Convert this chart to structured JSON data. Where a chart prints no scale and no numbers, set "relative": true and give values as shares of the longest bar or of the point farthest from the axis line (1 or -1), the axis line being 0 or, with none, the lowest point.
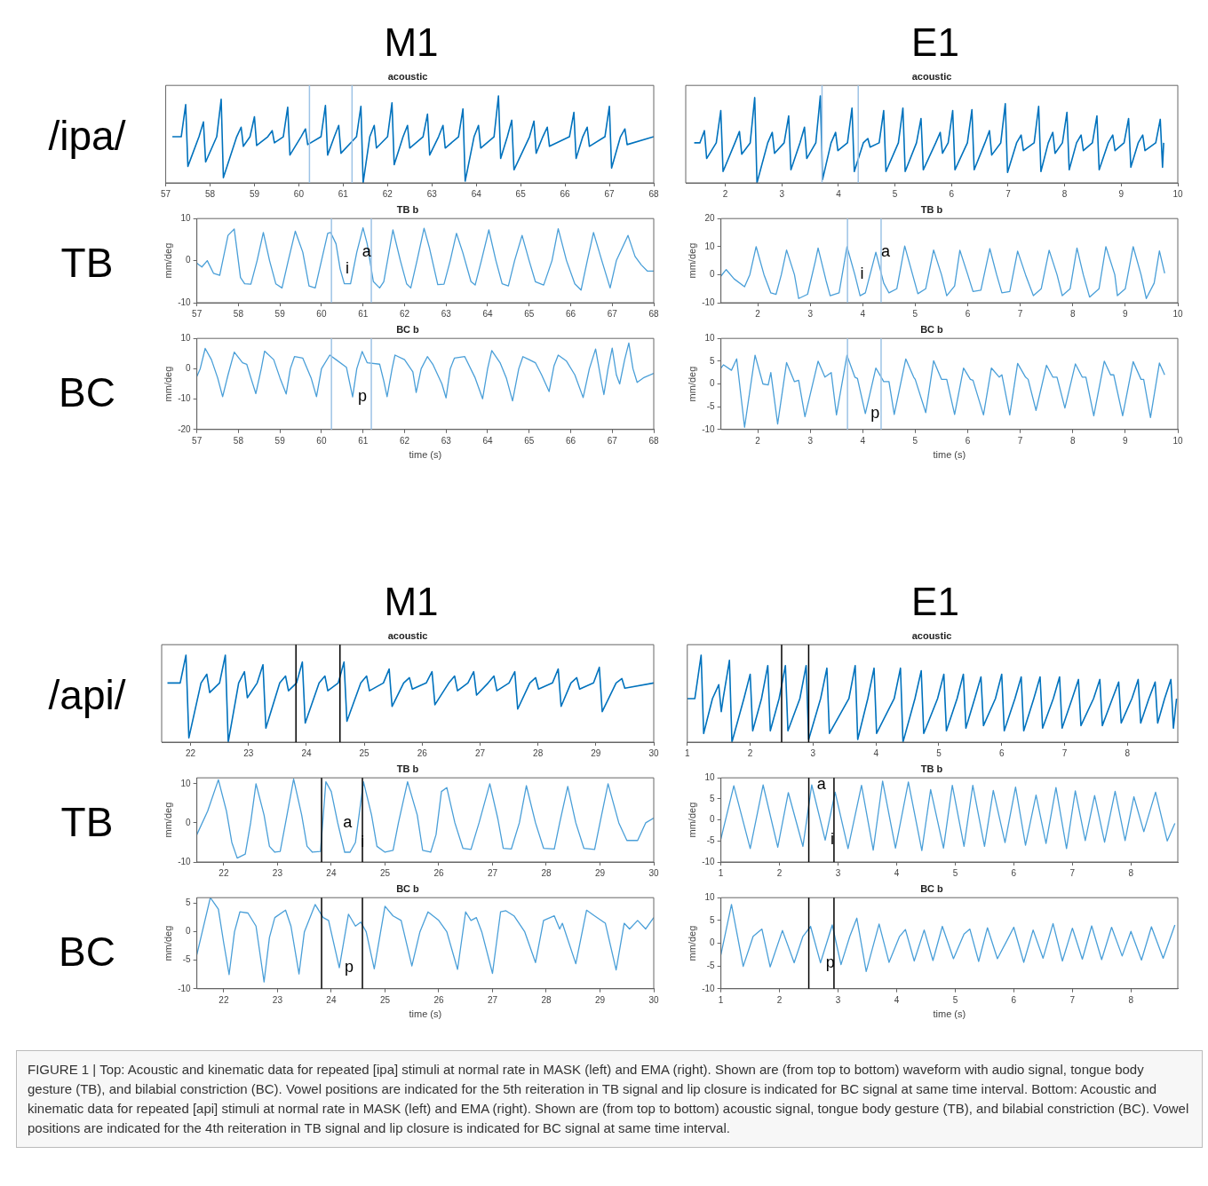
{
  "chart_data": [
    {
      "type": "line",
      "title": "M1",
      "subtitle": "acoustic",
      "relative": true,
      "color": "#0072bd",
      "xlim": [
        57,
        68
      ],
      "xticks": [
        57,
        58,
        59,
        60,
        61,
        62,
        63,
        64,
        65,
        66,
        67,
        68
      ],
      "annotations": [
        "/ipa/"
      ],
      "ref_lines": [
        {
          "axis": "x",
          "value": 60.24,
          "color": "#9dc3e6"
        },
        {
          "axis": "x",
          "value": 61.2,
          "color": "#9dc3e6"
        }
      ],
      "x": [
        57.15,
        57.35,
        57.45,
        57.5,
        57.75,
        57.85,
        57.9,
        58.15,
        58.25,
        58.3,
        58.6,
        58.7,
        58.75,
        58.9,
        59.0,
        59.05,
        59.3,
        59.4,
        59.45,
        59.65,
        59.75,
        59.8,
        60.05,
        60.15,
        60.2,
        60.5,
        60.6,
        60.65,
        60.8,
        60.9,
        60.95,
        61.3,
        61.4,
        61.45,
        61.6,
        61.7,
        61.75,
        62.0,
        62.1,
        62.15,
        62.35,
        62.45,
        62.5,
        62.8,
        62.9,
        62.95,
        63.15,
        63.25,
        63.3,
        63.6,
        63.7,
        63.75,
        63.95,
        64.05,
        64.1,
        64.4,
        64.5,
        64.55,
        64.7,
        64.8,
        64.85,
        65.2,
        65.3,
        65.35,
        65.5,
        65.6,
        65.65,
        66.1,
        66.2,
        66.25,
        66.4,
        66.5,
        66.55,
        66.9,
        67.0,
        67.05,
        67.25,
        67.35,
        67.4,
        68
      ],
      "values": [
        0.53,
        0.53,
        0.9,
        0.19,
        0.53,
        0.7,
        0.24,
        0.53,
        0.96,
        0.06,
        0.53,
        0.64,
        0.42,
        0.53,
        0.76,
        0.43,
        0.53,
        0.6,
        0.46,
        0.53,
        0.87,
        0.32,
        0.53,
        0.62,
        0.44,
        0.53,
        0.89,
        0.32,
        0.53,
        0.66,
        0.34,
        0.53,
        0.88,
        0,
        0.53,
        0.66,
        0.4,
        0.53,
        0.92,
        0.21,
        0.53,
        0.66,
        0.4,
        0.53,
        0.79,
        0.32,
        0.53,
        0.66,
        0.4,
        0.53,
        0.85,
        0.02,
        0.53,
        0.66,
        0.4,
        0.53,
        1,
        0.28,
        0.53,
        0.72,
        0.15,
        0.53,
        0.71,
        0.34,
        0.53,
        0.64,
        0.42,
        0.53,
        0.81,
        0.28,
        0.53,
        0.64,
        0.42,
        0.53,
        0.88,
        0.17,
        0.53,
        0.62,
        0.44,
        0.53
      ]
    },
    {
      "type": "line",
      "title": "TB b",
      "ylabel": "mm/deg",
      "color": "#4a9fd8",
      "xlim": [
        57,
        68
      ],
      "xticks": [
        57,
        58,
        59,
        60,
        61,
        62,
        63,
        64,
        65,
        66,
        67,
        68
      ],
      "ylim": [
        -10,
        10
      ],
      "yticks": [
        -10,
        0,
        10
      ],
      "annotations": [
        "TB",
        {
          "text": "a",
          "x": 60.85,
          "y": 2
        },
        {
          "text": "i",
          "x": 60.45,
          "y": -2
        }
      ],
      "ref_lines": [
        {
          "axis": "x",
          "value": 60.24,
          "color": "#9dc3e6"
        },
        {
          "axis": "x",
          "value": 61.2,
          "color": "#9dc3e6"
        }
      ],
      "x": [
        57,
        57.12,
        57.25,
        57.4,
        57.55,
        57.75,
        57.9,
        58.05,
        58.15,
        58.3,
        58.45,
        58.6,
        58.75,
        58.9,
        59.05,
        59.2,
        59.37,
        59.55,
        59.7,
        59.85,
        60,
        60.15,
        60.22,
        60.35,
        60.45,
        60.55,
        60.7,
        60.85,
        61,
        61.1,
        61.25,
        61.4,
        61.5,
        61.72,
        61.9,
        62.05,
        62.15,
        62.3,
        62.47,
        62.6,
        62.8,
        62.95,
        63.1,
        63.25,
        63.4,
        63.6,
        63.7,
        63.85,
        64.03,
        64.2,
        64.35,
        64.5,
        64.65,
        64.83,
        65,
        65.15,
        65.35,
        65.55,
        65.7,
        65.9,
        66.1,
        66.25,
        66.4,
        66.55,
        66.75,
        66.95,
        67.1,
        67.38,
        67.55,
        67.7,
        67.85,
        68
      ],
      "values": [
        -0.6,
        -1.5,
        0,
        -3,
        -3.5,
        6,
        7.5,
        -4,
        -5.5,
        -5.6,
        0,
        6.7,
        0,
        -5.5,
        -6.5,
        0,
        7,
        2,
        -6,
        -6.5,
        0,
        6.5,
        6.7,
        4,
        -2,
        -5.5,
        -5.5,
        2,
        7.8,
        4,
        -5,
        -6.5,
        -5,
        7.3,
        0,
        -5.5,
        -6.5,
        0,
        7.7,
        3,
        -5.7,
        -5.6,
        0,
        6.5,
        2,
        -5,
        -5.8,
        0,
        7.3,
        0,
        -5.5,
        -6,
        0,
        6,
        0,
        -5,
        -5.8,
        0,
        7.6,
        0,
        -5.5,
        -7,
        0,
        6.7,
        0,
        -6.5,
        0,
        6,
        1,
        -1,
        -2.5,
        -2.5
      ]
    },
    {
      "type": "line",
      "title": "BC b",
      "ylabel": "mm/deg",
      "xlabel": "time (s)",
      "color": "#4a9fd8",
      "xlim": [
        57,
        68
      ],
      "xticks": [
        57,
        58,
        59,
        60,
        61,
        62,
        63,
        64,
        65,
        66,
        67,
        68
      ],
      "ylim": [
        -20,
        10
      ],
      "yticks": [
        -20,
        -10,
        0,
        10
      ],
      "annotations": [
        "BC",
        {
          "text": "p",
          "x": 60.75,
          "y": -9.3
        }
      ],
      "ref_lines": [
        {
          "axis": "x",
          "value": 60.24,
          "color": "#9dc3e6"
        },
        {
          "axis": "x",
          "value": 61.2,
          "color": "#9dc3e6"
        }
      ],
      "x": [
        57,
        57.08,
        57.2,
        57.35,
        57.5,
        57.62,
        57.75,
        57.9,
        58.1,
        58.2,
        58.3,
        58.42,
        58.55,
        58.63,
        58.85,
        59,
        59.15,
        59.25,
        59.35,
        59.55,
        59.75,
        59.88,
        60,
        60.2,
        60.35,
        60.6,
        60.75,
        60.85,
        60.98,
        61.1,
        61.4,
        61.5,
        61.58,
        61.7,
        61.77,
        62,
        62.2,
        62.28,
        62.4,
        62.55,
        62.68,
        62.9,
        63,
        63.1,
        63.2,
        63.45,
        63.7,
        63.88,
        64,
        64.1,
        64.3,
        64.45,
        64.6,
        64.75,
        64.85,
        65,
        65.15,
        65.3,
        65.48,
        65.6,
        65.7,
        65.9,
        66.1,
        66.3,
        66.45,
        66.6,
        66.75,
        66.8,
        66.9,
        67,
        67.1,
        67.18,
        67.3,
        67.4,
        67.5,
        67.6,
        67.75,
        68
      ],
      "values": [
        -2.5,
        0,
        6.7,
        3,
        -3,
        -9.2,
        -2,
        5.5,
        2,
        1.5,
        -3,
        -8.2,
        0,
        5.8,
        3,
        -3,
        -8.3,
        0,
        4,
        3.5,
        -3,
        -9.2,
        0,
        4.5,
        3,
        0.5,
        -9.3,
        0,
        5.7,
        2,
        1.5,
        -4,
        -9.2,
        0,
        4.5,
        3,
        -1,
        -7.8,
        0,
        4,
        1.5,
        -5,
        -9.6,
        0,
        3.5,
        4,
        -3,
        -9.9,
        0,
        6,
        2,
        -3,
        -10.6,
        0,
        4,
        3,
        2,
        -2,
        -7.5,
        1,
        4.5,
        2.5,
        -2,
        -9.5,
        0,
        6.5,
        -5,
        -8.5,
        0,
        6.8,
        -2,
        -5,
        3,
        8.5,
        0,
        -4.5,
        -3,
        -1.5
      ]
    },
    {
      "type": "line",
      "title": "E1",
      "subtitle": "acoustic",
      "relative": true,
      "color": "#0072bd",
      "xlim": [
        1.3,
        10
      ],
      "xticks": [
        2,
        3,
        4,
        5,
        6,
        7,
        8,
        9,
        10
      ],
      "ref_lines": [
        {
          "axis": "x",
          "value": 3.71,
          "color": "#9dc3e6"
        },
        {
          "axis": "x",
          "value": 4.35,
          "color": "#9dc3e6"
        }
      ],
      "x": [
        1.45,
        1.55,
        1.63,
        1.67,
        1.84,
        1.92,
        1.96,
        2.17,
        2.25,
        2.29,
        2.44,
        2.52,
        2.56,
        2.75,
        2.83,
        2.87,
        3.04,
        3.12,
        3.16,
        3.32,
        3.4,
        3.44,
        3.6,
        3.68,
        3.72,
        3.87,
        3.95,
        3.99,
        4.16,
        4.24,
        4.28,
        4.44,
        4.52,
        4.56,
        4.72,
        4.8,
        4.84,
        5.06,
        5.14,
        5.18,
        5.38,
        5.46,
        5.5,
        5.72,
        5.8,
        5.84,
        5.94,
        6.02,
        6.06,
        6.28,
        6.36,
        6.4,
        6.59,
        6.67,
        6.71,
        6.87,
        6.95,
        6.99,
        7.15,
        7.23,
        7.27,
        7.46,
        7.54,
        7.58,
        7.71,
        7.79,
        7.83,
        7.96,
        8.04,
        8.08,
        8.21,
        8.29,
        8.33,
        8.49,
        8.57,
        8.61,
        8.77,
        8.85,
        8.89,
        9.05,
        9.13,
        9.17,
        9.3,
        9.38,
        9.42,
        9.61,
        9.69,
        9.73,
        9.75
      ],
      "values": [
        0.46,
        0.46,
        0.6,
        0.28,
        0.46,
        0.83,
        0.13,
        0.46,
        0.59,
        0.33,
        0.46,
        0.98,
        0,
        0.46,
        0.58,
        0.34,
        0.46,
        0.77,
        0.15,
        0.46,
        0.64,
        0.28,
        0.46,
        1,
        0.04,
        0.46,
        0.58,
        0.37,
        0.46,
        0.86,
        0.13,
        0.46,
        0.51,
        0.41,
        0.46,
        0.83,
        0.13,
        0.46,
        0.86,
        0.13,
        0.46,
        0.74,
        0.15,
        0.46,
        0.58,
        0.34,
        0.46,
        0.83,
        0.15,
        0.46,
        0.84,
        0.15,
        0.46,
        0.6,
        0.32,
        0.46,
        0.91,
        0.12,
        0.46,
        0.55,
        0.37,
        0.46,
        0.88,
        0.13,
        0.46,
        0.58,
        0.34,
        0.46,
        0.81,
        0.15,
        0.46,
        0.55,
        0.37,
        0.46,
        0.77,
        0.15,
        0.46,
        0.55,
        0.37,
        0.46,
        0.74,
        0.18,
        0.46,
        0.55,
        0.37,
        0.46,
        0.73,
        0.18,
        0.46
      ]
    },
    {
      "type": "line",
      "title": "TB b",
      "ylabel": "mm/deg",
      "color": "#4a9fd8",
      "xlim": [
        1.3,
        10
      ],
      "xticks": [
        2,
        3,
        4,
        5,
        6,
        7,
        8,
        9,
        10
      ],
      "ylim": [
        -10,
        20
      ],
      "yticks": [
        -10,
        0,
        10,
        20
      ],
      "annotations": [
        {
          "text": "a",
          "x": 4.25,
          "y": 8
        },
        {
          "text": "i",
          "x": 3.85,
          "y": 0
        }
      ],
      "ref_lines": [
        {
          "axis": "x",
          "value": 3.71,
          "color": "#9dc3e6"
        },
        {
          "axis": "x",
          "value": 4.35,
          "color": "#9dc3e6"
        }
      ],
      "x": [
        1.3,
        1.4,
        1.55,
        1.75,
        1.85,
        1.97,
        2.12,
        2.25,
        2.35,
        2.45,
        2.55,
        2.7,
        2.78,
        2.95,
        3.1,
        3.15,
        3.3,
        3.38,
        3.55,
        3.7,
        3.85,
        3.95,
        4.05,
        4.25,
        4.4,
        4.5,
        4.65,
        4.8,
        4.95,
        5.05,
        5.2,
        5.35,
        5.5,
        5.6,
        5.75,
        5.85,
        6,
        6.1,
        6.25,
        6.42,
        6.55,
        6.65,
        6.8,
        6.95,
        7.1,
        7.25,
        7.4,
        7.55,
        7.7,
        7.8,
        7.95,
        8.08,
        8.2,
        8.32,
        8.5,
        8.63,
        8.8,
        8.85,
        9,
        9.15,
        9.3,
        9.4,
        9.55,
        9.65,
        9.75
      ],
      "values": [
        -0.5,
        1.8,
        -1.5,
        -4.3,
        0,
        10,
        0,
        -6.5,
        -7,
        0,
        8.8,
        0,
        -8.5,
        -7,
        5,
        9.5,
        -2,
        -7.5,
        -6.5,
        10,
        0,
        -7.5,
        -6.5,
        8,
        -3,
        -6.5,
        -5,
        10.2,
        0,
        -6.8,
        -5,
        8.8,
        0,
        -7.5,
        -4,
        8.7,
        0,
        -6,
        -5.5,
        9.3,
        0,
        -6.5,
        -6,
        8.4,
        0,
        -7.5,
        -5,
        8.7,
        0,
        -7.5,
        -5,
        9.5,
        0,
        -8,
        -5,
        10,
        0,
        -7.5,
        -5,
        10,
        0,
        -8.5,
        -3,
        8.5,
        0.5
      ]
    },
    {
      "type": "line",
      "title": "BC b",
      "ylabel": "mm/deg",
      "xlabel": "time (s)",
      "color": "#4a9fd8",
      "xlim": [
        1.3,
        10
      ],
      "xticks": [
        2,
        3,
        4,
        5,
        6,
        7,
        8,
        9,
        10
      ],
      "ylim": [
        -10,
        10
      ],
      "yticks": [
        -10,
        -5,
        0,
        5,
        10
      ],
      "annotations": [
        {
          "text": "p",
          "x": 4.05,
          "y": -6.5
        }
      ],
      "ref_lines": [
        {
          "axis": "x",
          "value": 3.71,
          "color": "#9dc3e6"
        },
        {
          "axis": "x",
          "value": 4.35,
          "color": "#9dc3e6"
        }
      ],
      "x": [
        1.3,
        1.35,
        1.5,
        1.6,
        1.75,
        1.95,
        2.1,
        2.2,
        2.25,
        2.38,
        2.55,
        2.7,
        2.78,
        2.9,
        3.15,
        3.28,
        3.4,
        3.5,
        3.7,
        3.85,
        3.9,
        4.05,
        4.25,
        4.4,
        4.5,
        4.6,
        4.82,
        4.97,
        5,
        5.2,
        5.35,
        5.5,
        5.6,
        5.75,
        5.92,
        6.05,
        6.1,
        6.3,
        6.45,
        6.6,
        6.65,
        6.8,
        6.95,
        7.1,
        7.15,
        7.3,
        7.5,
        7.62,
        7.7,
        7.85,
        8.05,
        8.18,
        8.25,
        8.4,
        8.6,
        8.72,
        8.78,
        8.95,
        9.15,
        9.3,
        9.35,
        9.48,
        9.65,
        9.75
      ],
      "values": [
        3.5,
        4.2,
        3,
        5.5,
        -9.5,
        6.3,
        0,
        -0.2,
        2.5,
        -8.8,
        4.7,
        0.5,
        0.8,
        -7.2,
        5,
        1.5,
        2.5,
        -6.8,
        6.3,
        1.5,
        1.2,
        -6.5,
        3.5,
        0.5,
        0.5,
        -6.7,
        5.5,
        1.5,
        1,
        -6.3,
        5.1,
        1,
        1,
        -6.7,
        3.5,
        1,
        0.8,
        -6.8,
        3.5,
        1.5,
        2,
        -6.8,
        4.5,
        1.5,
        1,
        -5.8,
        4.1,
        1.5,
        1.5,
        -5.3,
        4.4,
        1.5,
        1.5,
        -7,
        5,
        2,
        2,
        -7,
        4.9,
        1,
        1,
        -7.4,
        4.6,
        2
      ]
    },
    {
      "type": "line",
      "title": "M1",
      "subtitle": "acoustic",
      "relative": true,
      "color": "#0072bd",
      "xlim": [
        21.5,
        30
      ],
      "xticks": [
        22,
        23,
        24,
        25,
        26,
        27,
        28,
        29,
        30
      ],
      "annotations": [
        "/api/"
      ],
      "ref_lines": [
        {
          "axis": "x",
          "value": 23.82,
          "color": "#000000"
        },
        {
          "axis": "x",
          "value": 24.58,
          "color": "#000000"
        }
      ],
      "x": [
        21.6,
        21.82,
        21.92,
        21.97,
        22.18,
        22.28,
        22.33,
        22.5,
        22.6,
        22.65,
        22.83,
        22.93,
        22.98,
        23.15,
        23.25,
        23.3,
        23.54,
        23.64,
        23.69,
        23.83,
        23.93,
        23.98,
        24.22,
        24.32,
        24.37,
        24.55,
        24.65,
        24.7,
        24.94,
        25.04,
        25.09,
        25.33,
        25.43,
        25.48,
        25.68,
        25.78,
        25.83,
        26.07,
        26.17,
        26.22,
        26.46,
        26.56,
        26.61,
        26.79,
        26.89,
        26.94,
        27.14,
        27.24,
        27.29,
        27.5,
        27.6,
        27.65,
        27.86,
        27.96,
        28.01,
        28.25,
        28.35,
        28.4,
        28.57,
        28.67,
        28.72,
        28.96,
        29.06,
        29.11,
        29.35,
        29.45,
        29.5,
        30
      ],
      "values": [
        0.68,
        0.68,
        1,
        0.05,
        0.68,
        0.78,
        0.57,
        0.68,
        1,
        0,
        0.68,
        0.81,
        0.51,
        0.68,
        0.89,
        0.16,
        0.68,
        0.76,
        0.59,
        0.68,
        0.92,
        0.22,
        0.68,
        0.76,
        0.59,
        0.68,
        0.92,
        0.24,
        0.68,
        0.76,
        0.59,
        0.68,
        0.84,
        0.41,
        0.68,
        0.74,
        0.61,
        0.68,
        0.81,
        0.43,
        0.68,
        0.76,
        0.59,
        0.68,
        0.81,
        0.54,
        0.68,
        0.76,
        0.59,
        0.68,
        0.81,
        0.38,
        0.68,
        0.74,
        0.61,
        0.68,
        0.84,
        0.41,
        0.68,
        0.74,
        0.61,
        0.68,
        0.86,
        0.35,
        0.68,
        0.73,
        0.62,
        0.68
      ]
    },
    {
      "type": "line",
      "title": "TB b",
      "ylabel": "mm/deg",
      "color": "#4a9fd8",
      "xlim": [
        21.5,
        30
      ],
      "xticks": [
        22,
        23,
        24,
        25,
        26,
        27,
        28,
        29,
        30
      ],
      "ylim": [
        -10,
        11.5
      ],
      "yticks": [
        -10,
        0,
        10
      ],
      "annotations": [
        "TB",
        {
          "text": "a",
          "x": 24.12,
          "y": 0
        },
        {
          "text": "i",
          "x": 24.45,
          "y": -5
        }
      ],
      "ref_lines": [
        {
          "axis": "x",
          "value": 23.82,
          "color": "#000000"
        },
        {
          "axis": "x",
          "value": 24.58,
          "color": "#000000"
        }
      ],
      "x": [
        21.5,
        21.7,
        21.9,
        22.05,
        22.15,
        22.25,
        22.4,
        22.5,
        22.6,
        22.75,
        22.85,
        22.95,
        23.05,
        23.15,
        23.3,
        23.45,
        23.55,
        23.65,
        23.8,
        23.9,
        24,
        24.12,
        24.25,
        24.35,
        24.45,
        24.6,
        24.75,
        24.85,
        25,
        25.15,
        25.25,
        25.42,
        25.6,
        25.7,
        25.85,
        25.95,
        26.05,
        26.15,
        26.3,
        26.45,
        26.6,
        26.75,
        26.95,
        27.1,
        27.2,
        27.35,
        27.5,
        27.63,
        27.8,
        27.95,
        28.15,
        28.25,
        28.4,
        28.55,
        28.7,
        28.9,
        29,
        29.15,
        29.35,
        29.5,
        29.7,
        29.85,
        30
      ],
      "values": [
        -3,
        3,
        11,
        3,
        -5,
        -9,
        -8,
        0,
        10,
        2,
        -6,
        -7.5,
        -7.3,
        0,
        11.2,
        2,
        -6,
        -7.5,
        -7.3,
        10.5,
        8,
        0,
        -7.5,
        -7.5,
        -5,
        10.5,
        2,
        -6,
        -7.5,
        -7,
        0,
        10.5,
        2,
        -7,
        -7.5,
        -3,
        8,
        9,
        0,
        -6.5,
        -6.8,
        0,
        10,
        1,
        -6.5,
        -6.7,
        0,
        9.5,
        0,
        -6.5,
        -6.7,
        0,
        9.3,
        0,
        -6.5,
        -6.8,
        0,
        10,
        0,
        -4.5,
        -4.5,
        0,
        1.2
      ]
    },
    {
      "type": "line",
      "title": "BC b",
      "ylabel": "mm/deg",
      "xlabel": "time (s)",
      "color": "#4a9fd8",
      "xlim": [
        21.5,
        30
      ],
      "xticks": [
        22,
        23,
        24,
        25,
        26,
        27,
        28,
        29,
        30
      ],
      "ylim": [
        -10,
        6
      ],
      "yticks": [
        -10,
        -5,
        0,
        5
      ],
      "annotations": [
        "BC",
        {
          "text": "p",
          "x": 24.15,
          "y": -6.3
        }
      ],
      "ref_lines": [
        {
          "axis": "x",
          "value": 23.82,
          "color": "#000000"
        },
        {
          "axis": "x",
          "value": 24.58,
          "color": "#000000"
        }
      ],
      "x": [
        21.5,
        21.6,
        21.75,
        21.9,
        22,
        22.1,
        22.2,
        22.3,
        22.45,
        22.6,
        22.75,
        22.85,
        22.95,
        23.15,
        23.25,
        23.4,
        23.5,
        23.7,
        23.85,
        23.95,
        24.15,
        24.32,
        24.45,
        24.55,
        24.65,
        24.8,
        25,
        25.15,
        25.3,
        25.5,
        25.65,
        25.8,
        26,
        26.15,
        26.35,
        26.5,
        26.6,
        26.7,
        26.8,
        27,
        27.15,
        27.25,
        27.4,
        27.6,
        27.8,
        27.95,
        28.15,
        28.25,
        28.3,
        28.55,
        28.75,
        28.9,
        29.1,
        29.3,
        29.45,
        29.55,
        29.7,
        29.85,
        30
      ],
      "values": [
        -4,
        0,
        6,
        4,
        -2,
        -7.5,
        0,
        3.5,
        3.3,
        1,
        -8.8,
        -1,
        2.5,
        3.8,
        1,
        -7.4,
        0,
        4.8,
        2.5,
        2,
        -6.3,
        3.1,
        1,
        1.7,
        0,
        -6.5,
        4.5,
        2.8,
        2,
        -6,
        0,
        3.5,
        2,
        0,
        -6.6,
        3.5,
        2,
        2.5,
        0,
        -7.3,
        3.5,
        3.7,
        2.8,
        0,
        -5.4,
        2,
        2.8,
        0.5,
        1.5,
        -5.6,
        3.8,
        2.8,
        1.5,
        -6.7,
        1.5,
        0.5,
        2,
        0.5,
        2.5
      ]
    },
    {
      "type": "line",
      "title": "E1",
      "subtitle": "acoustic",
      "relative": true,
      "color": "#0072bd",
      "xlim": [
        1,
        8.8
      ],
      "xticks": [
        1,
        2,
        3,
        4,
        5,
        6,
        7,
        8
      ],
      "ref_lines": [
        {
          "axis": "x",
          "value": 2.5,
          "color": "#000000"
        },
        {
          "axis": "x",
          "value": 2.93,
          "color": "#000000"
        }
      ],
      "x": [
        1,
        1.12,
        1.22,
        1.26,
        1.4,
        1.5,
        1.54,
        1.57,
        1.67,
        1.71,
        1.9,
        2,
        2.04,
        2.18,
        2.28,
        2.32,
        2.46,
        2.56,
        2.6,
        2.79,
        2.89,
        2.93,
        3.12,
        3.22,
        3.26,
        3.57,
        3.67,
        3.71,
        3.87,
        3.97,
        4.01,
        4.29,
        4.39,
        4.43,
        4.62,
        4.72,
        4.76,
        4.98,
        5.08,
        5.12,
        5.29,
        5.39,
        5.43,
        5.57,
        5.67,
        5.71,
        5.9,
        6,
        6.04,
        6.21,
        6.31,
        6.35,
        6.51,
        6.61,
        6.65,
        6.82,
        6.92,
        6.96,
        7.12,
        7.22,
        7.26,
        7.46,
        7.56,
        7.6,
        7.76,
        7.86,
        7.9,
        8.07,
        8.17,
        8.21,
        8.34,
        8.44,
        8.48,
        8.59,
        8.69,
        8.73,
        8.78
      ],
      "values": [
        0.5,
        0.5,
        1,
        0.1,
        0.5,
        0.66,
        0.35,
        0.5,
        0.94,
        0,
        0.5,
        0.78,
        0.13,
        0.5,
        0.88,
        0.13,
        0.5,
        0.88,
        0.13,
        0.5,
        0.88,
        0.03,
        0.5,
        0.85,
        0.1,
        0.5,
        0.88,
        0.03,
        0.5,
        0.85,
        0.1,
        0.5,
        0.85,
        0,
        0.5,
        0.82,
        0.1,
        0.5,
        0.78,
        0.13,
        0.5,
        0.78,
        0.16,
        0.5,
        0.75,
        0.19,
        0.5,
        0.78,
        0.13,
        0.5,
        0.75,
        0.13,
        0.5,
        0.75,
        0.16,
        0.5,
        0.75,
        0.16,
        0.5,
        0.72,
        0.19,
        0.5,
        0.72,
        0.19,
        0.5,
        0.69,
        0.22,
        0.5,
        0.72,
        0.22,
        0.5,
        0.69,
        0.22,
        0.5,
        0.72,
        0.16,
        0.5
      ]
    },
    {
      "type": "line",
      "title": "TB b",
      "ylabel": "mm/deg",
      "color": "#4a9fd8",
      "xlim": [
        1,
        8.8
      ],
      "xticks": [
        1,
        2,
        3,
        4,
        5,
        6,
        7,
        8
      ],
      "ylim": [
        -10,
        10
      ],
      "yticks": [
        -10,
        -5,
        0,
        5,
        10
      ],
      "annotations": [
        {
          "text": "a",
          "x": 2.55,
          "y": 8.3
        },
        {
          "text": "i",
          "x": 2.78,
          "y": -4.8
        }
      ],
      "ref_lines": [
        {
          "axis": "x",
          "value": 2.5,
          "color": "#000000"
        },
        {
          "axis": "x",
          "value": 2.93,
          "color": "#000000"
        }
      ],
      "x": [
        1,
        1.22,
        1.5,
        1.72,
        1.97,
        2.15,
        2.4,
        2.55,
        2.78,
        2.95,
        3.17,
        3.4,
        3.6,
        3.76,
        3.98,
        4.2,
        4.43,
        4.58,
        4.8,
        4.95,
        5.15,
        5.3,
        5.5,
        5.65,
        5.85,
        6.03,
        6.2,
        6.38,
        6.55,
        6.72,
        6.9,
        7.05,
        7.22,
        7.38,
        7.55,
        7.73,
        7.9,
        8.05,
        8.22,
        8.42,
        8.62,
        8.75
      ],
      "values": [
        -4.5,
        8.1,
        -6.8,
        8.3,
        -6.5,
        6.5,
        -6.3,
        8.3,
        -4.8,
        6.6,
        -6.8,
        8.2,
        -7.2,
        9.2,
        -6.7,
        9,
        -7.3,
        7.2,
        -6.7,
        8.2,
        -6.3,
        8.2,
        -6.3,
        7,
        -5.4,
        7.8,
        -6,
        5.9,
        -5.6,
        7.7,
        -6.8,
        6.9,
        -4.9,
        5.8,
        -5.3,
        6.8,
        -4.9,
        5.5,
        -2.8,
        6.6,
        -5,
        -0.8
      ]
    },
    {
      "type": "line",
      "title": "BC b",
      "ylabel": "mm/deg",
      "xlabel": "time (s)",
      "color": "#4a9fd8",
      "xlim": [
        1,
        8.8
      ],
      "xticks": [
        1,
        2,
        3,
        4,
        5,
        6,
        7,
        8
      ],
      "ylim": [
        -10,
        10
      ],
      "yticks": [
        -10,
        -5,
        0,
        5,
        10
      ],
      "annotations": [
        {
          "text": "p",
          "x": 2.7,
          "y": -4.3
        }
      ],
      "ref_lines": [
        {
          "axis": "x",
          "value": 2.5,
          "color": "#000000"
        },
        {
          "axis": "x",
          "value": 2.93,
          "color": "#000000"
        }
      ],
      "x": [
        1,
        1.18,
        1.38,
        1.55,
        1.7,
        1.84,
        2.05,
        2.25,
        2.4,
        2.53,
        2.7,
        2.9,
        3.05,
        3.2,
        3.32,
        3.48,
        3.7,
        3.87,
        4.05,
        4.15,
        4.3,
        4.47,
        4.62,
        4.78,
        4.97,
        5.15,
        5.25,
        5.4,
        5.55,
        5.72,
        5.9,
        6,
        6.17,
        6.33,
        6.5,
        6.67,
        6.83,
        7,
        7.17,
        7.33,
        7.5,
        7.67,
        7.85,
        8,
        8.18,
        8.35,
        8.55,
        8.75
      ],
      "values": [
        -2.5,
        8.5,
        -5.1,
        1.5,
        3.1,
        -5.2,
        2.8,
        -4.3,
        1.5,
        3.7,
        -4.3,
        4,
        -4.7,
        1.5,
        5.5,
        -6.2,
        4.2,
        -4.2,
        1.5,
        3,
        -3.9,
        2.9,
        -3.8,
        3.7,
        -3.4,
        2,
        3.1,
        -4,
        3.4,
        -3.4,
        1,
        3.5,
        -4.2,
        2.9,
        -3.3,
        4.3,
        -3.9,
        3.3,
        -3.5,
        3.8,
        -3.6,
        3.5,
        -2.8,
        2.6,
        -3.7,
        3.6,
        -3.3,
        4
      ]
    },
    {
      "type": "other",
      "annotations": [
        "FIGURE 1 | Top: Acoustic and kinematic data for repeated [ipa] stimuli at normal rate in MASK (left) and EMA (right). Shown are (from top to bottom) waveform with audio signal, tongue body gesture (TB), and bilabial constriction (BC). Vowel positions are indicated for the 5th reiteration in TB signal and lip closure is indicated for BC signal at same time interval. Bottom: Acoustic and kinematic data for repeated [api] stimuli at normal rate in MASK (left) and EMA (right). Shown are (from top to bottom) acoustic signal, tongue body gesture (TB), and bilabial constriction (BC). Vowel positions are indicated for the 4th reiteration in TB signal and lip closure is indicated for BC signal at same time interval."
      ]
    }
  ]
}
